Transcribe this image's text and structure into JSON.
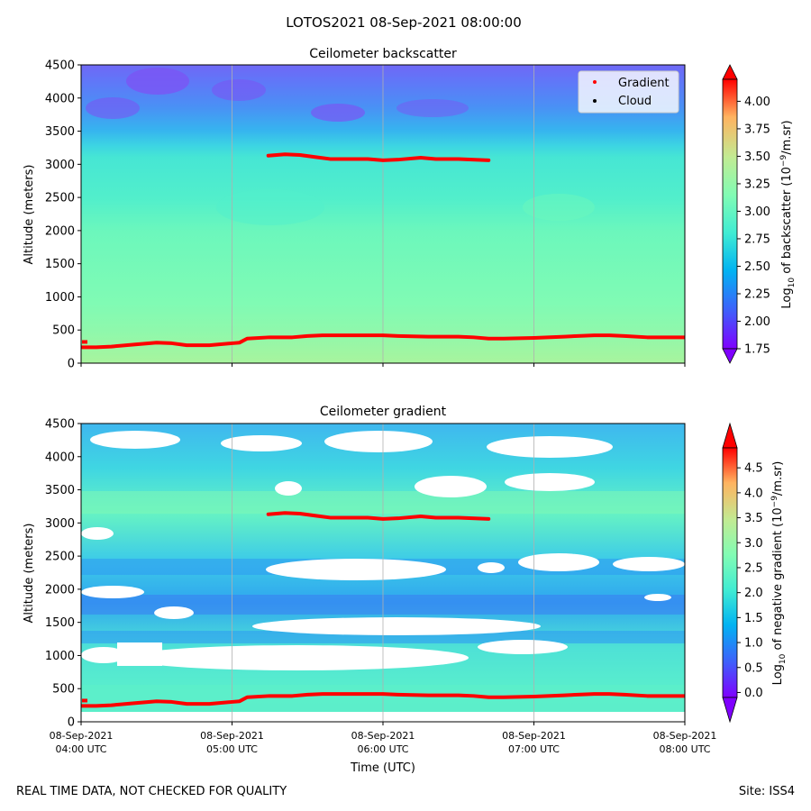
{
  "figure": {
    "suptitle": "LOTOS2021 08-Sep-2021 08:00:00",
    "footer_left": "REAL TIME DATA, NOT CHECKED FOR QUALITY",
    "footer_right": "Site: ISS4"
  },
  "legend": {
    "gradient_label": "Gradient",
    "cloud_label": "Cloud",
    "gradient_color": "#ff0000",
    "cloud_color": "#000000"
  },
  "chart_data": [
    {
      "type": "heatmap",
      "title": "Ceilometer backscatter",
      "ylabel": "Altitude (meters)",
      "ylim": [
        0,
        4500
      ],
      "yticks": [
        "0",
        "500",
        "1000",
        "1500",
        "2000",
        "2500",
        "3000",
        "3500",
        "4000",
        "4500"
      ],
      "colorbar": {
        "label_prefix": "Log",
        "label_sub": "10",
        "label_mid": " of backscatter (10",
        "label_sup": "−9",
        "label_suffix": "/m.sr)",
        "range": [
          1.75,
          4.2
        ],
        "ticks": [
          "1.75",
          "2.00",
          "2.25",
          "2.50",
          "2.75",
          "3.00",
          "3.25",
          "3.50",
          "3.75",
          "4.00"
        ]
      },
      "series": [
        {
          "name": "Gradient",
          "x_hours": [
            4.0,
            4.1,
            4.2,
            4.35,
            4.5,
            4.6,
            4.7,
            4.85,
            5.0,
            5.05,
            5.1,
            5.25,
            5.4,
            5.5,
            5.6,
            5.75,
            5.9,
            6.0,
            6.1,
            6.3,
            6.5,
            6.6,
            6.7,
            6.8,
            7.0,
            7.2,
            7.4,
            7.5,
            7.6,
            7.75,
            8.0
          ],
          "y_m": [
            240,
            240,
            250,
            280,
            310,
            300,
            270,
            270,
            300,
            310,
            370,
            390,
            390,
            410,
            420,
            420,
            420,
            420,
            410,
            400,
            400,
            390,
            370,
            370,
            380,
            400,
            420,
            420,
            410,
            390,
            390
          ]
        },
        {
          "name": "Gradient",
          "x_hours": [
            5.24,
            5.35,
            5.45,
            5.55,
            5.65,
            5.75,
            5.9,
            6.0,
            6.1,
            6.25,
            6.35,
            6.5,
            6.7
          ],
          "y_m": [
            3130,
            3150,
            3140,
            3110,
            3080,
            3080,
            3080,
            3060,
            3070,
            3100,
            3080,
            3080,
            3060
          ]
        }
      ]
    },
    {
      "type": "heatmap",
      "title": "Ceilometer gradient",
      "ylabel": "Altitude (meters)",
      "xlabel": "Time (UTC)",
      "ylim": [
        0,
        4500
      ],
      "yticks": [
        "0",
        "500",
        "1000",
        "1500",
        "2000",
        "2500",
        "3000",
        "3500",
        "4000",
        "4500"
      ],
      "xticks": [
        {
          "date": "08-Sep-2021",
          "time": "04:00 UTC"
        },
        {
          "date": "08-Sep-2021",
          "time": "05:00 UTC"
        },
        {
          "date": "08-Sep-2021",
          "time": "06:00 UTC"
        },
        {
          "date": "08-Sep-2021",
          "time": "07:00 UTC"
        },
        {
          "date": "08-Sep-2021",
          "time": "08:00 UTC"
        }
      ],
      "colorbar": {
        "label_prefix": "Log",
        "label_sub": "10",
        "label_mid": " of negative gradient (10",
        "label_sup": "−9",
        "label_suffix": "/m.sr)",
        "range": [
          -0.1,
          4.9
        ],
        "ticks": [
          "0.0",
          "0.5",
          "1.0",
          "1.5",
          "2.0",
          "2.5",
          "3.0",
          "3.5",
          "4.0",
          "4.5"
        ]
      },
      "series": [
        {
          "name": "Gradient",
          "x_hours": [
            4.0,
            4.1,
            4.2,
            4.35,
            4.5,
            4.6,
            4.7,
            4.85,
            5.0,
            5.05,
            5.1,
            5.25,
            5.4,
            5.5,
            5.6,
            5.75,
            5.9,
            6.0,
            6.1,
            6.3,
            6.5,
            6.6,
            6.7,
            6.8,
            7.0,
            7.2,
            7.4,
            7.5,
            7.6,
            7.75,
            8.0
          ],
          "y_m": [
            240,
            240,
            250,
            280,
            310,
            300,
            270,
            270,
            300,
            310,
            370,
            390,
            390,
            410,
            420,
            420,
            420,
            420,
            410,
            400,
            400,
            390,
            370,
            370,
            380,
            400,
            420,
            420,
            410,
            390,
            390
          ]
        },
        {
          "name": "Gradient",
          "x_hours": [
            5.24,
            5.35,
            5.45,
            5.55,
            5.65,
            5.75,
            5.9,
            6.0,
            6.1,
            6.25,
            6.35,
            6.5,
            6.7
          ],
          "y_m": [
            3130,
            3150,
            3140,
            3110,
            3080,
            3080,
            3080,
            3060,
            3070,
            3100,
            3080,
            3080,
            3060
          ]
        }
      ]
    }
  ]
}
